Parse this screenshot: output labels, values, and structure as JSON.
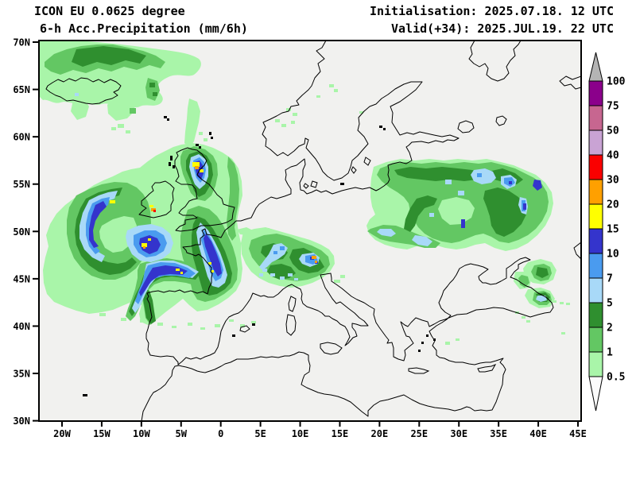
{
  "header": {
    "model": "ICON EU 0.0625 degree",
    "product": "6-h Acc.Precipitation (mm/6h)",
    "init": "Initialisation: 2025.07.18. 12 UTC",
    "valid": "Valid(+34): 2025.JUL.19. 22 UTC"
  },
  "map": {
    "lat_labels": [
      "70N",
      "65N",
      "60N",
      "55N",
      "50N",
      "45N",
      "40N",
      "35N",
      "30N"
    ],
    "lon_labels": [
      "20W",
      "15W",
      "10W",
      "5W",
      "0",
      "5E",
      "10E",
      "15E",
      "20E",
      "25E",
      "30E",
      "35E",
      "40E",
      "45E"
    ]
  },
  "colorbar": {
    "labels": [
      "100",
      "75",
      "50",
      "40",
      "30",
      "20",
      "15",
      "10",
      "7",
      "5",
      "2",
      "1",
      "0.5"
    ],
    "colors": [
      "#8B008B",
      "#C76690",
      "#C9A3D4",
      "#FA0000",
      "#FFA000",
      "#FFFF00",
      "#3434CC",
      "#4A9BEF",
      "#A8D9F8",
      "#2F8F2F",
      "#63C763",
      "#A9F5A9"
    ],
    "arrow_top_color": "#B4B4B4",
    "arrow_bottom_color": "#FBFBFB"
  },
  "palette": {
    "light_green": "#A9F5A9",
    "med_green": "#63C763",
    "dark_green": "#2F8F2F",
    "light_blue": "#A8D9F8",
    "med_blue": "#4A9BEF",
    "dark_blue": "#3434CC",
    "yellow": "#FFFF00",
    "orange": "#FFA000",
    "red": "#FA0000",
    "map_background": "#F1F1EF",
    "coastline": "#000000",
    "frame": "#000000"
  }
}
